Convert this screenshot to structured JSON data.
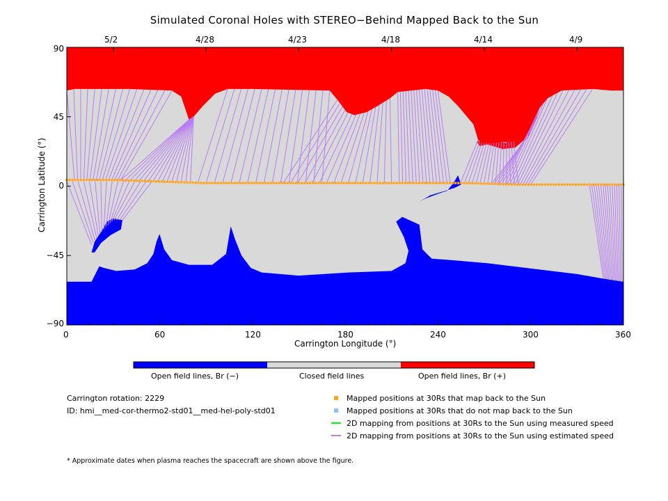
{
  "chart_data": {
    "type": "heatmap",
    "title": "Simulated Coronal Holes with STEREO−Behind Mapped Back to the Sun",
    "xlabel": "Carrington Longitude (°)",
    "ylabel": "Carrington Latitude (°)",
    "xlim": [
      0,
      360
    ],
    "ylim": [
      -90,
      90
    ],
    "x_ticks": [
      "0",
      "60",
      "120",
      "180",
      "240",
      "300",
      "360"
    ],
    "y_ticks": [
      "90",
      "45",
      "0",
      "−45",
      "−90"
    ],
    "top_axis_ticks": [
      {
        "lon": 30,
        "label": "5/2"
      },
      {
        "lon": 90,
        "label": "4/28"
      },
      {
        "lon": 150,
        "label": "4/23"
      },
      {
        "lon": 210,
        "label": "4/18"
      },
      {
        "lon": 270,
        "label": "4/14"
      },
      {
        "lon": 330,
        "label": "4/9"
      }
    ],
    "colors": {
      "negative": "#0000ff",
      "closed": "#d9d9d9",
      "positive": "#ff0000",
      "mapped": "#ffa51f",
      "unmapped": "#87c3f5",
      "measured": "#00ff00",
      "estimated": "#b87cf5"
    },
    "north_boundary": [
      [
        0,
        62
      ],
      [
        5,
        63
      ],
      [
        40,
        63
      ],
      [
        68,
        62
      ],
      [
        74,
        58
      ],
      [
        77,
        49
      ],
      [
        79,
        43
      ],
      [
        82,
        45
      ],
      [
        88,
        52
      ],
      [
        96,
        60
      ],
      [
        104,
        63
      ],
      [
        120,
        63
      ],
      [
        170,
        62
      ],
      [
        175,
        56
      ],
      [
        181,
        48
      ],
      [
        186,
        46
      ],
      [
        194,
        48
      ],
      [
        201,
        52
      ],
      [
        209,
        57
      ],
      [
        214,
        61
      ],
      [
        232,
        63
      ],
      [
        240,
        62
      ],
      [
        247,
        58
      ],
      [
        253,
        52
      ],
      [
        258,
        46
      ],
      [
        263,
        40
      ],
      [
        266,
        30
      ],
      [
        268,
        28
      ],
      [
        275,
        28
      ],
      [
        289,
        29
      ],
      [
        299,
        33
      ],
      [
        303,
        42
      ],
      [
        306,
        51
      ],
      [
        311,
        57
      ],
      [
        320,
        62
      ],
      [
        340,
        63
      ],
      [
        352,
        62
      ],
      [
        360,
        62
      ]
    ],
    "south_boundary": [
      [
        0,
        -62
      ],
      [
        16,
        -62
      ],
      [
        19,
        -56
      ],
      [
        21,
        -52
      ],
      [
        24,
        -53
      ],
      [
        32,
        -55
      ],
      [
        44,
        -54
      ],
      [
        52,
        -50
      ],
      [
        56,
        -44
      ],
      [
        58,
        -36
      ],
      [
        60,
        -31
      ],
      [
        63,
        -41
      ],
      [
        68,
        -48
      ],
      [
        79,
        -51
      ],
      [
        94,
        -51
      ],
      [
        103,
        -44
      ],
      [
        106,
        -26
      ],
      [
        109,
        -35
      ],
      [
        113,
        -45
      ],
      [
        119,
        -53
      ],
      [
        126,
        -56
      ],
      [
        150,
        -58
      ],
      [
        182,
        -56
      ],
      [
        210,
        -55
      ],
      [
        219,
        -50
      ],
      [
        221,
        -42
      ],
      [
        218,
        -33
      ],
      [
        213,
        -23
      ],
      [
        217,
        -20
      ],
      [
        228,
        -25
      ],
      [
        230,
        -41
      ],
      [
        236,
        -47
      ],
      [
        249,
        -48
      ],
      [
        272,
        -50
      ],
      [
        297,
        -53
      ],
      [
        330,
        -57
      ],
      [
        347,
        -60
      ],
      [
        360,
        -62
      ]
    ],
    "islands": [
      {
        "sign": "negative",
        "points": [
          [
            16,
            -43
          ],
          [
            18,
            -36
          ],
          [
            22,
            -30
          ],
          [
            26,
            -23
          ],
          [
            30,
            -21
          ],
          [
            36,
            -22
          ],
          [
            35,
            -28
          ],
          [
            28,
            -32
          ],
          [
            22,
            -37
          ],
          [
            18,
            -43
          ]
        ]
      },
      {
        "sign": "positive",
        "points": [
          [
            265,
            29
          ],
          [
            276,
            29
          ],
          [
            284,
            28
          ],
          [
            288,
            31
          ],
          [
            293,
            33
          ],
          [
            300,
            36
          ],
          [
            297,
            31
          ],
          [
            290,
            25
          ],
          [
            282,
            24
          ],
          [
            272,
            27
          ],
          [
            267,
            26
          ]
        ]
      },
      {
        "sign": "negative",
        "points": [
          [
            228,
            -10
          ],
          [
            232,
            -8
          ],
          [
            240,
            -5
          ],
          [
            246,
            -3
          ],
          [
            250,
            2
          ],
          [
            253,
            7
          ],
          [
            255,
            1
          ],
          [
            251,
            -1
          ],
          [
            245,
            -3
          ],
          [
            235,
            -6
          ]
        ]
      }
    ],
    "hcs": [
      [
        0,
        4
      ],
      [
        30,
        4
      ],
      [
        60,
        3
      ],
      [
        90,
        2
      ],
      [
        120,
        2
      ],
      [
        150,
        2
      ],
      [
        180,
        2
      ],
      [
        210,
        2
      ],
      [
        240,
        2
      ],
      [
        260,
        2
      ],
      [
        290,
        1
      ],
      [
        330,
        1
      ],
      [
        360,
        1
      ]
    ],
    "fan_groups": [
      {
        "from": [
          5,
          4
        ],
        "to": [
          35,
          4
        ],
        "end": [
          [
            0,
            62
          ],
          [
            5,
            63
          ],
          [
            40,
            63
          ],
          [
            68,
            62
          ]
        ]
      },
      {
        "from": [
          35,
          4
        ],
        "to": [
          80,
          3
        ],
        "end": [
          [
            79,
            43
          ],
          [
            82,
            45
          ]
        ]
      },
      {
        "from": [
          85,
          3
        ],
        "to": [
          165,
          2
        ],
        "end": [
          [
            104,
            63
          ],
          [
            120,
            63
          ],
          [
            170,
            62
          ]
        ]
      },
      {
        "from": [
          140,
          2
        ],
        "to": [
          210,
          2
        ],
        "end": [
          [
            175,
            56
          ],
          [
            181,
            48
          ],
          [
            186,
            46
          ],
          [
            194,
            48
          ],
          [
            201,
            52
          ],
          [
            209,
            57
          ]
        ]
      },
      {
        "from": [
          215,
          2
        ],
        "to": [
          248,
          2
        ],
        "end": [
          [
            214,
            61
          ],
          [
            232,
            63
          ],
          [
            240,
            62
          ]
        ]
      },
      {
        "from": [
          255,
          3
        ],
        "to": [
          292,
          1
        ],
        "end": [
          [
            266,
            30
          ],
          [
            268,
            28
          ],
          [
            275,
            28
          ],
          [
            289,
            29
          ]
        ]
      },
      {
        "from": [
          275,
          2
        ],
        "to": [
          300,
          1
        ],
        "end": [
          [
            299,
            33
          ],
          [
            303,
            42
          ],
          [
            306,
            51
          ],
          [
            311,
            57
          ],
          [
            320,
            62
          ],
          [
            340,
            63
          ]
        ]
      },
      {
        "from": [
          0,
          3
        ],
        "to": [
          55,
          3
        ],
        "end": [
          [
            16,
            -38
          ],
          [
            22,
            -30
          ],
          [
            30,
            -22
          ],
          [
            36,
            -22
          ]
        ]
      },
      {
        "from": [
          338,
          1
        ],
        "to": [
          360,
          1
        ],
        "end": [
          [
            347,
            -60
          ],
          [
            360,
            -62
          ]
        ]
      }
    ],
    "legend": [
      "Open field lines, Br (−)",
      "Closed field lines",
      "Open field lines, Br (+)"
    ]
  },
  "info": {
    "rotation": "Carrington rotation: 2229",
    "id": "ID: hmi__med-cor-thermo2-std01__med-hel-poly-std01"
  },
  "legend2": {
    "mapped": "Mapped positions at 30Rs that map back to the Sun",
    "unmapped": "Mapped positions at 30Rs that do not map back to the Sun",
    "measured": "2D mapping from positions at 30Rs to the Sun using measured speed",
    "estimated": "2D mapping from positions at 30Rs to the Sun using estimated speed"
  },
  "footnote": "* Approximate dates when plasma reaches the spacecraft are shown above the figure."
}
